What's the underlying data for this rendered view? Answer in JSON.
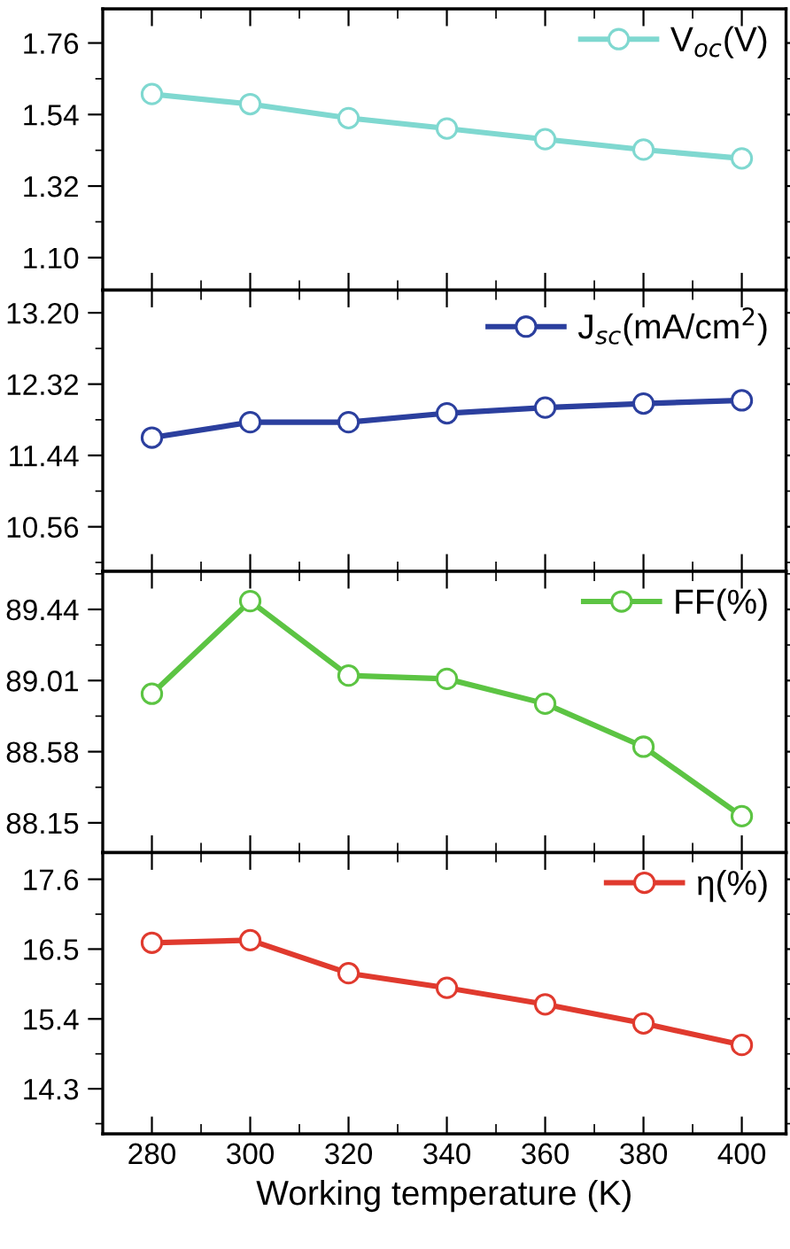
{
  "chart_data": [
    {
      "type": "line",
      "x": [
        280,
        300,
        320,
        340,
        360,
        380,
        400
      ],
      "series": [
        {
          "name": "V$_{oc}$(V)",
          "color": "#7fd8d0",
          "values": [
            1.603,
            1.572,
            1.529,
            1.497,
            1.464,
            1.432,
            1.405
          ]
        }
      ],
      "xlim": [
        270,
        409
      ],
      "xticks": [
        280,
        300,
        320,
        340,
        360,
        380,
        400
      ],
      "ylim": [
        1.0,
        1.865
      ],
      "yticks": [
        {
          "value": 1.1,
          "label": "1.10"
        },
        1.32,
        1.54,
        1.76
      ],
      "tick_labels": "y",
      "legend": "top right",
      "marker": "circle",
      "line_style": "solid",
      "grid": false
    },
    {
      "type": "line",
      "x": [
        280,
        300,
        320,
        340,
        360,
        380,
        400
      ],
      "series": [
        {
          "name": "J$_{sc}$(mA/cm$^{2}$)",
          "color": "#2b3f9e",
          "values": [
            11.66,
            11.85,
            11.85,
            11.96,
            12.03,
            12.08,
            12.12
          ]
        }
      ],
      "xlim": [
        270,
        409
      ],
      "xticks": [
        280,
        300,
        320,
        340,
        360,
        380,
        400
      ],
      "ylim": [
        10.01,
        13.48
      ],
      "yticks": [
        10.56,
        11.44,
        12.32,
        {
          "value": 13.2,
          "label": "13.20"
        }
      ],
      "tick_labels": "y",
      "legend": "top right",
      "marker": "circle",
      "line_style": "solid",
      "grid": false
    },
    {
      "type": "line",
      "x": [
        280,
        300,
        320,
        340,
        360,
        380,
        400
      ],
      "series": [
        {
          "name": "FF(%)",
          "color": "#5cc443",
          "values": [
            88.93,
            89.49,
            89.04,
            89.02,
            88.87,
            88.61,
            88.19
          ]
        }
      ],
      "xlim": [
        270,
        409
      ],
      "xticks": [
        280,
        300,
        320,
        340,
        360,
        380,
        400
      ],
      "ylim": [
        87.97,
        89.67
      ],
      "yticks": [
        88.15,
        88.58,
        89.01,
        89.44
      ],
      "tick_labels": "y",
      "legend": "top right",
      "marker": "circle",
      "line_style": "solid",
      "grid": false
    },
    {
      "type": "line",
      "x": [
        280,
        300,
        320,
        340,
        360,
        380,
        400
      ],
      "series": [
        {
          "name": "η(%)",
          "color": "#e03a2e",
          "values": [
            16.6,
            16.64,
            16.12,
            15.89,
            15.63,
            15.33,
            14.99
          ]
        }
      ],
      "xlim": [
        270,
        409
      ],
      "xticks": [
        280,
        300,
        320,
        340,
        360,
        380,
        400
      ],
      "ylim": [
        13.59,
        18.02
      ],
      "yticks": [
        14.3,
        15.4,
        16.5,
        17.6
      ],
      "xlabel": "Working temperature (K)",
      "legend": "top right",
      "marker": "circle",
      "line_style": "solid",
      "grid": false
    }
  ]
}
